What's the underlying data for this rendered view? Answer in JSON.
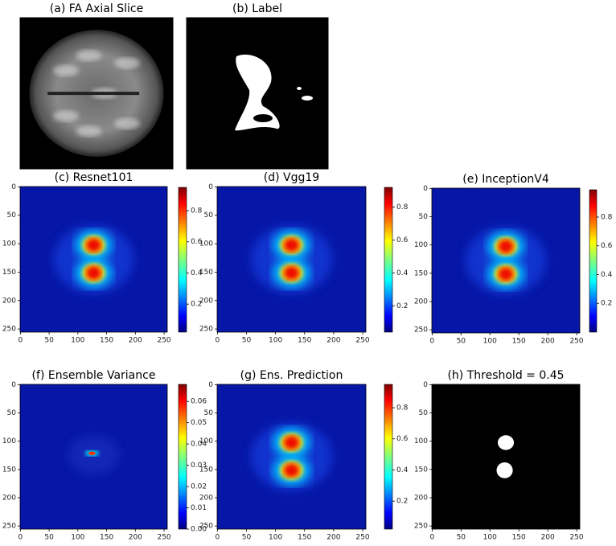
{
  "chart_data": [
    {
      "type": "image",
      "title": "(a) FA Axial Slice"
    },
    {
      "type": "image",
      "title": "(b) Label"
    },
    {
      "type": "heatmap",
      "title": "(c) Resnet101",
      "colormap": "jet",
      "xlim": [
        -0.5,
        255.5
      ],
      "ylim": [
        255.5,
        -0.5
      ],
      "xticks": [
        0,
        50,
        100,
        150,
        200,
        250
      ],
      "yticks": [
        0,
        50,
        100,
        150,
        200,
        250
      ],
      "colorbar": {
        "lim": [
          0.02,
          0.95
        ],
        "ticks": [
          0.2,
          0.4,
          0.6,
          0.8
        ]
      }
    },
    {
      "type": "heatmap",
      "title": "(d) Vgg19",
      "colormap": "jet",
      "xlim": [
        -0.5,
        255.5
      ],
      "ylim": [
        255.5,
        -0.5
      ],
      "xticks": [
        0,
        50,
        100,
        150,
        200,
        250
      ],
      "yticks": [
        0,
        50,
        100,
        150,
        200,
        250
      ],
      "colorbar": {
        "lim": [
          0.04,
          0.92
        ],
        "ticks": [
          0.2,
          0.4,
          0.6,
          0.8
        ]
      }
    },
    {
      "type": "heatmap",
      "title": "(e) InceptionV4",
      "colormap": "jet",
      "xlim": [
        -0.5,
        255.5
      ],
      "ylim": [
        255.5,
        -0.5
      ],
      "xticks": [
        0,
        50,
        100,
        150,
        200,
        250
      ],
      "yticks": [
        0,
        50,
        100,
        150,
        200,
        250
      ],
      "colorbar": {
        "lim": [
          0.0,
          0.99
        ],
        "ticks": [
          0.2,
          0.4,
          0.6,
          0.8
        ]
      }
    },
    {
      "type": "heatmap",
      "title": "(f) Ensemble Variance",
      "colormap": "jet",
      "xlim": [
        -0.5,
        255.5
      ],
      "ylim": [
        255.5,
        -0.5
      ],
      "xticks": [
        0,
        50,
        100,
        150,
        200,
        250
      ],
      "yticks": [
        0,
        50,
        100,
        150,
        200,
        250
      ],
      "colorbar": {
        "lim": [
          0,
          0.068
        ],
        "ticks": [
          {
            "value": 0,
            "label": "0.00"
          },
          {
            "value": 0.01,
            "label": "0.01"
          },
          {
            "value": 0.02,
            "label": "0.02"
          },
          {
            "value": 0.03,
            "label": "0.03"
          },
          {
            "value": 0.04,
            "label": "0.04"
          },
          {
            "value": 0.05,
            "label": "0.05"
          },
          {
            "value": 0.06,
            "label": "0.06"
          }
        ]
      }
    },
    {
      "type": "heatmap",
      "title": "(g) Ens. Prediction",
      "colormap": "jet",
      "xlim": [
        -0.5,
        255.5
      ],
      "ylim": [
        255.5,
        -0.5
      ],
      "xticks": [
        0,
        50,
        100,
        150,
        200,
        250
      ],
      "yticks": [
        0,
        50,
        100,
        150,
        200,
        250
      ],
      "colorbar": {
        "lim": [
          0.02,
          0.95
        ],
        "ticks": [
          0.2,
          0.4,
          0.6,
          0.8
        ]
      }
    },
    {
      "type": "heatmap",
      "title": "(h) Threshold = 0.45",
      "colormap": "gray",
      "xlim": [
        -0.5,
        255.5
      ],
      "ylim": [
        255.5,
        -0.5
      ],
      "xticks": [
        0,
        50,
        100,
        150,
        200,
        250
      ],
      "yticks": [
        0,
        50,
        100,
        150,
        200,
        250
      ]
    }
  ]
}
